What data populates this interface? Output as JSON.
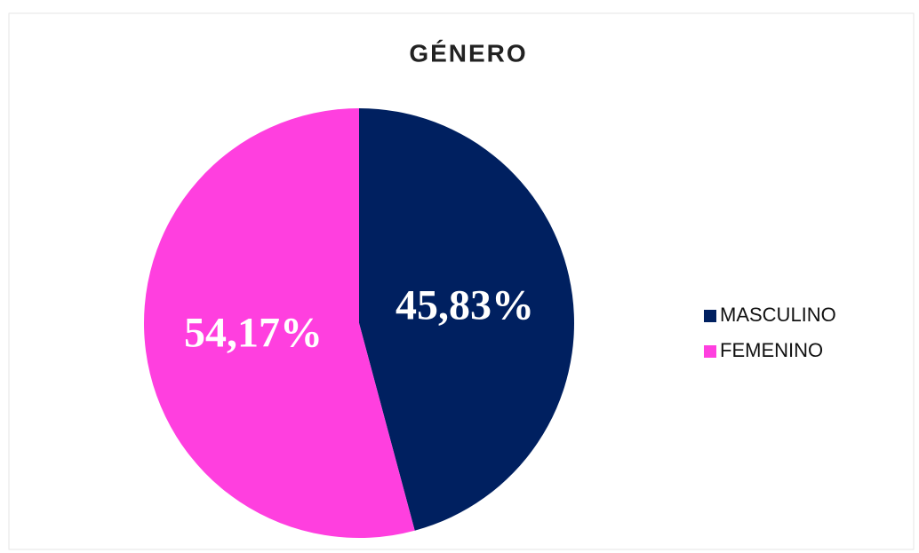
{
  "chart_data": {
    "type": "pie",
    "title": "GÉNERO",
    "categories": [
      "MASCULINO",
      "FEMENINO"
    ],
    "values": [
      45.83,
      54.17
    ],
    "value_labels": [
      "45,83%",
      "54,17%"
    ],
    "colors": [
      "#002060",
      "#ff3fdf"
    ],
    "legend": "right"
  }
}
